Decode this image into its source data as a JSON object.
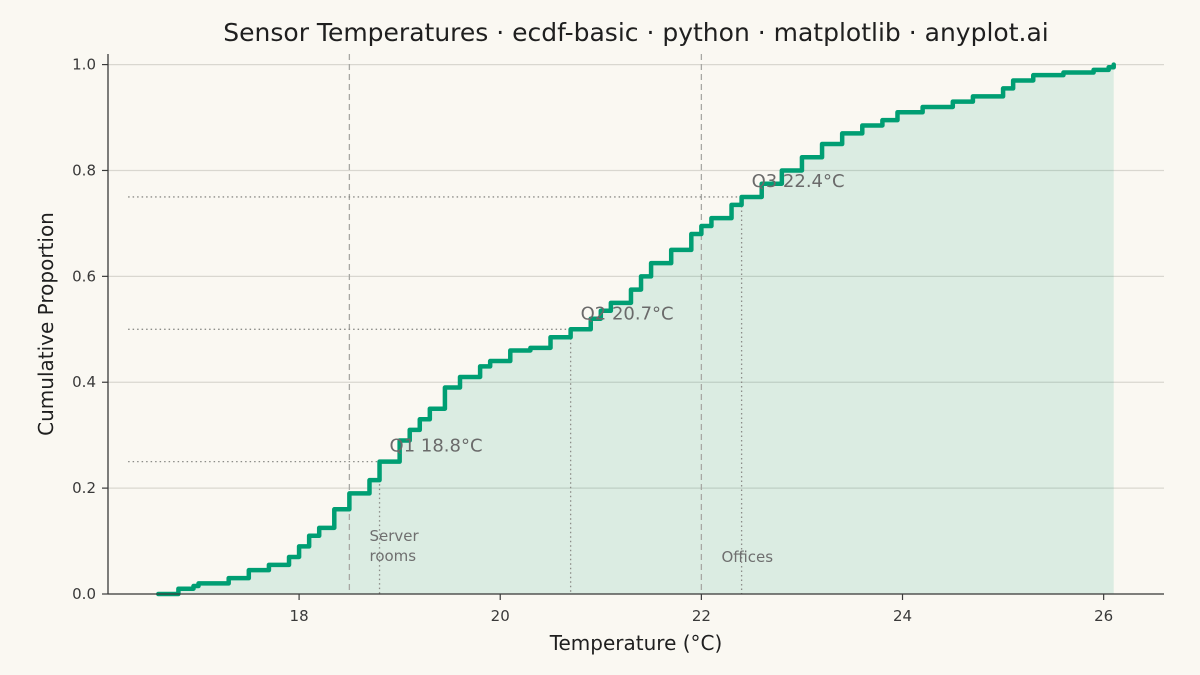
{
  "chart_data": {
    "type": "line",
    "subtype": "ecdf-step",
    "title": "Sensor Temperatures · ecdf-basic · python · matplotlib · anyplot.ai",
    "xlabel": "Temperature (°C)",
    "ylabel": "Cumulative Proportion",
    "xlim": [
      16.1,
      26.6
    ],
    "ylim": [
      0.0,
      1.02
    ],
    "xticks": [
      18,
      20,
      22,
      24,
      26
    ],
    "yticks": [
      0.0,
      0.2,
      0.4,
      0.6,
      0.8,
      1.0
    ],
    "xtick_labels": [
      "18",
      "20",
      "22",
      "24",
      "26"
    ],
    "ytick_labels": [
      "0.0",
      "0.2",
      "0.4",
      "0.6",
      "0.8",
      "1.0"
    ],
    "grid": "horizontal",
    "line_color": "#009e73",
    "fill_color": "#009e73",
    "series": [
      {
        "x": [
          16.6,
          16.8,
          16.8,
          16.95,
          17.0,
          17.3,
          17.5,
          17.7,
          17.9,
          18.0,
          18.1,
          18.2,
          18.35,
          18.5,
          18.7,
          18.8,
          19.0,
          19.1,
          19.2,
          19.3,
          19.45,
          19.6,
          19.8,
          19.9,
          20.1,
          20.3,
          20.5,
          20.7,
          20.9,
          21.0,
          21.1,
          21.3,
          21.4,
          21.5,
          21.7,
          21.9,
          22.0,
          22.1,
          22.3,
          22.4,
          22.6,
          22.8,
          23.0,
          23.2,
          23.4,
          23.6,
          23.8,
          23.95,
          24.2,
          24.5,
          24.7,
          25.0,
          25.1,
          25.3,
          25.6,
          25.9,
          26.05,
          26.1
        ],
        "y": [
          0.0,
          0.0,
          0.01,
          0.015,
          0.02,
          0.03,
          0.045,
          0.055,
          0.07,
          0.09,
          0.11,
          0.125,
          0.16,
          0.19,
          0.215,
          0.25,
          0.29,
          0.31,
          0.33,
          0.35,
          0.39,
          0.41,
          0.43,
          0.44,
          0.46,
          0.465,
          0.485,
          0.5,
          0.52,
          0.535,
          0.55,
          0.575,
          0.6,
          0.625,
          0.65,
          0.68,
          0.695,
          0.71,
          0.735,
          0.75,
          0.775,
          0.8,
          0.825,
          0.85,
          0.87,
          0.885,
          0.895,
          0.91,
          0.92,
          0.93,
          0.94,
          0.955,
          0.97,
          0.98,
          0.985,
          0.99,
          0.995,
          1.0
        ]
      }
    ],
    "quartiles": [
      {
        "label": "Q1  18.8°C",
        "x": 18.8,
        "y": 0.25
      },
      {
        "label": "Q2  20.7°C",
        "x": 20.7,
        "y": 0.5
      },
      {
        "label": "Q3  22.4°C",
        "x": 22.4,
        "y": 0.75
      }
    ],
    "regions": [
      {
        "lines": [
          "Server",
          "rooms"
        ],
        "boundary_x": 18.5,
        "text_x": 18.7,
        "text_y": 0.1
      },
      {
        "lines": [
          "Offices"
        ],
        "boundary_x": 22.0,
        "text_x": 22.2,
        "text_y": 0.06
      }
    ]
  }
}
